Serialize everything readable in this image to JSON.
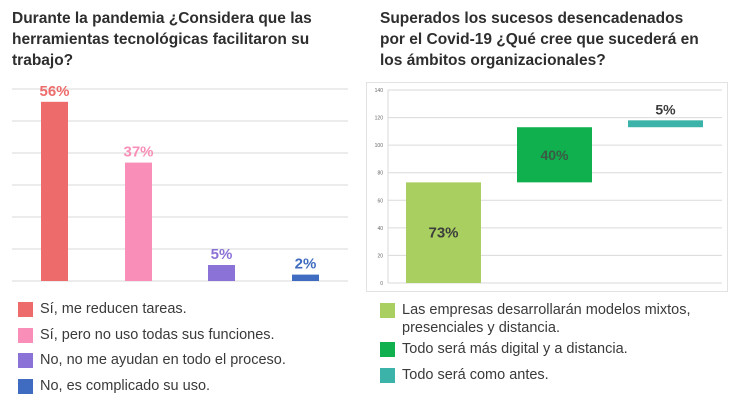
{
  "chart_data": [
    {
      "type": "bar",
      "title": "Durante la pandemia ¿Considera que las herramientas tecnológicas facilitaron su trabajo?",
      "title_lines": [
        "Durante la pandemia ¿Considera que las",
        "herramientas tecnológicas facilitaron su",
        "trabajo?"
      ],
      "categories": [
        "Sí, me reducen tareas.",
        "Sí, pero no uso todas sus funciones.",
        "No, no me ayudan en todo el proceso.",
        "No, es complicado su uso."
      ],
      "values": [
        56,
        37,
        5,
        2
      ],
      "labels": [
        "56%",
        "37%",
        "5%",
        "2%"
      ],
      "colors": [
        "#ee6b6b",
        "#f98fb8",
        "#8a72d6",
        "#3f6cc0"
      ],
      "ylim": [
        0,
        60
      ],
      "grid": true,
      "legend": "bottom"
    },
    {
      "type": "bar",
      "subtype": "waterfall",
      "title": "Superados los sucesos desencadenados por el Covid-19 ¿Qué cree que sucederá en los ámbitos organizacionales?",
      "title_lines": [
        "Superados los sucesos desencadenados",
        "por el Covid-19 ¿Qué cree que sucederá en",
        "los ámbitos organizacionales?"
      ],
      "categories": [
        "Las empresas desarrollarán modelos mixtos, presenciales y distancia.",
        "Todo será más digital y a distancia.",
        "Todo será como antes."
      ],
      "legend_lines": [
        [
          "Las empresas desarrollarán modelos mixtos,",
          "presenciales y distancia."
        ],
        [
          "Todo será más digital y a distancia."
        ],
        [
          "Todo será como antes."
        ]
      ],
      "values": [
        73,
        40,
        5
      ],
      "ranges": [
        [
          0,
          73
        ],
        [
          73,
          113
        ],
        [
          113,
          118
        ]
      ],
      "labels": [
        "73%",
        "40%",
        "5%"
      ],
      "colors": [
        "#a8cf5f",
        "#11b04f",
        "#3cb3a8"
      ],
      "yticks": [
        "0",
        "20",
        "40",
        "60",
        "80",
        "100",
        "120",
        "140"
      ],
      "ylim": [
        0,
        140
      ],
      "grid": true,
      "legend": "bottom"
    }
  ]
}
